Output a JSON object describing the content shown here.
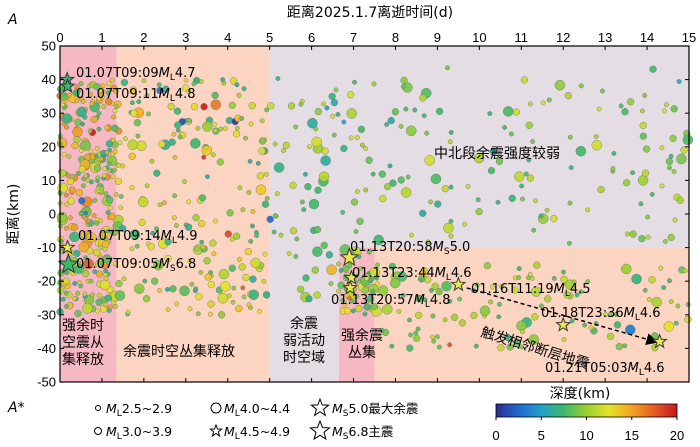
{
  "chart_data": {
    "type": "scatter",
    "title": "距离2025.1.7离逝时间(d)",
    "xlabel": "距离2025.1.7离逝时间(d)",
    "ylabel": "距离(km)",
    "xlim": [
      0,
      15
    ],
    "ylim": [
      -50,
      50
    ],
    "x_ticks": [
      "0",
      "1",
      "2",
      "3",
      "4",
      "5",
      "6",
      "7",
      "8",
      "9",
      "10",
      "11",
      "12",
      "13",
      "14",
      "15"
    ],
    "y_ticks": [
      "50",
      "40",
      "30",
      "20",
      "10",
      "0",
      "-10",
      "-20",
      "-30",
      "-40",
      "-50"
    ],
    "profile_start_label": "A",
    "profile_end_label": "A*",
    "regions": [
      {
        "x0": 0,
        "x1": 1.35,
        "y0": -50,
        "y1": 50,
        "color": "#f6b8c2",
        "label_lines": [
          "强余时",
          "空震从",
          "集释放"
        ]
      },
      {
        "x0": 1.35,
        "x1": 5.0,
        "y0": -50,
        "y1": 50,
        "color": "#fbd5c1",
        "label_lines": [
          "余震时空丛集释放"
        ]
      },
      {
        "x0": 5.0,
        "x1": 6.65,
        "y0": -50,
        "y1": 50,
        "color": "#e4dde3",
        "label_lines": [
          "余震",
          "弱活动",
          "时空域"
        ]
      },
      {
        "x0": 6.65,
        "x1": 7.5,
        "y0": -50,
        "y1": -10,
        "color": "#f6b8c2",
        "label_lines": [
          "强余震",
          "丛集"
        ]
      },
      {
        "x0": 7.5,
        "x1": 15,
        "y0": -50,
        "y1": -10,
        "color": "#fbd5c1",
        "label_lines": []
      },
      {
        "x0": 6.65,
        "x1": 15,
        "y0": -10,
        "y1": 50,
        "color": "#e4dde3",
        "label_lines": [
          "中北段余震强度较弱"
        ]
      }
    ],
    "events": [
      {
        "label": "01.07T09:09ML4.7",
        "label_main": "01.07T09:09",
        "mag_sym": "M",
        "mag_sub": "L",
        "mag_val": "4.7",
        "x": 0.17,
        "y": 40,
        "kind": "ML4.5-4.9"
      },
      {
        "label": "01.07T09:11ML4.8",
        "label_main": "01.07T09:11",
        "mag_sym": "M",
        "mag_sub": "L",
        "mag_val": "4.8",
        "x": 0.18,
        "y": 38,
        "kind": "ML4.5-4.9"
      },
      {
        "label": "01.07T09:14ML4.9",
        "label_main": "01.07T09:14",
        "mag_sym": "M",
        "mag_sub": "L",
        "mag_val": "4.9",
        "x": 0.18,
        "y": -10,
        "kind": "ML4.5-4.9"
      },
      {
        "label": "01.07T09:05MS6.8",
        "label_main": "01.07T09:05",
        "mag_sym": "M",
        "mag_sub": "S",
        "mag_val": "6.8",
        "x": 0.2,
        "y": -15,
        "kind": "MS6.8"
      },
      {
        "label": "01.13T20:58MS5.0",
        "label_main": "01.13T20:58",
        "mag_sym": "M",
        "mag_sub": "S",
        "mag_val": "5.0",
        "x": 6.9,
        "y": -13,
        "kind": "MS5.0"
      },
      {
        "label": "01.13T23:44ML4.6",
        "label_main": "01.13T23:44",
        "mag_sym": "M",
        "mag_sub": "L",
        "mag_val": "4.6",
        "x": 6.95,
        "y": -19,
        "kind": "ML4.5-4.9"
      },
      {
        "label": "01.13T20:57ML4.8",
        "label_main": "01.13T20:57",
        "mag_sym": "M",
        "mag_sub": "L",
        "mag_val": "4.8",
        "x": 6.92,
        "y": -22,
        "kind": "ML4.5-4.9"
      },
      {
        "label": "01.16T11:19ML4.5",
        "label_main": "01.16T11:19",
        "mag_sym": "M",
        "mag_sub": "L",
        "mag_val": "4.5",
        "x": 9.5,
        "y": -21,
        "kind": "ML4.5-4.9"
      },
      {
        "label": "01.18T23:36ML4.6",
        "label_main": "01.18T23:36",
        "mag_sym": "M",
        "mag_sub": "L",
        "mag_val": "4.6",
        "x": 12.0,
        "y": -33,
        "kind": "ML4.5-4.9"
      },
      {
        "label": "01.21T05:03ML4.6",
        "label_main": "01.21T05:03",
        "mag_sym": "M",
        "mag_sub": "L",
        "mag_val": "4.6",
        "x": 14.3,
        "y": -38,
        "kind": "ML4.5-4.9"
      }
    ],
    "trend": {
      "label": "触发相邻断层地震",
      "x0": 9.7,
      "y0": -22,
      "x1": 14.2,
      "y1": -38
    },
    "legend": {
      "position": "bottom",
      "items": [
        {
          "symbol": "circle-xs",
          "label": "ML2.5~2.9",
          "sym": "M",
          "sub": "L",
          "range": "2.5~2.9"
        },
        {
          "symbol": "circle-s",
          "label": "ML3.0~3.9",
          "sym": "M",
          "sub": "L",
          "range": "3.0~3.9"
        },
        {
          "symbol": "circle-m",
          "label": "ML4.0~4.4",
          "sym": "M",
          "sub": "L",
          "range": "4.0~4.4"
        },
        {
          "symbol": "star-s",
          "label": "ML4.5~4.9",
          "sym": "M",
          "sub": "L",
          "range": "4.5~4.9"
        },
        {
          "symbol": "star-m",
          "label": "MS5.0最大余震",
          "sym": "M",
          "sub": "S",
          "range": "5.0最大余震"
        },
        {
          "symbol": "star-l",
          "label": "MS6.8主震",
          "sym": "M",
          "sub": "S",
          "range": "6.8主震"
        }
      ]
    },
    "colorbar": {
      "title": "深度(km)",
      "min": 0,
      "max": 20,
      "ticks": [
        "0",
        "5",
        "10",
        "15",
        "20"
      ],
      "colors": [
        "#2b2c8f",
        "#1f6ad1",
        "#22a0c8",
        "#3cb86a",
        "#9bcf32",
        "#e8e229",
        "#f2a324",
        "#e45a23",
        "#c8181c"
      ]
    },
    "background_points_note": "aftershock scatter rendered procedurally"
  }
}
